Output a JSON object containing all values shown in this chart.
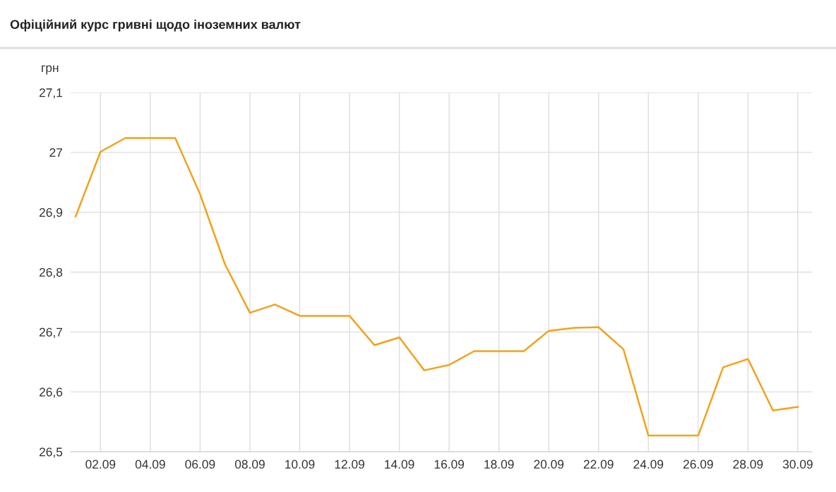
{
  "chart_data": {
    "type": "line",
    "title": "Офіційний курс гривні щодо іноземних валют",
    "ylabel": "грн",
    "categories": [
      null,
      "02.09",
      null,
      "04.09",
      null,
      "06.09",
      null,
      "08.09",
      null,
      "10.09",
      null,
      "12.09",
      null,
      "14.09",
      null,
      "16.09",
      null,
      "18.09",
      null,
      "20.09",
      null,
      "22.09",
      null,
      "24.09",
      null,
      "26.09",
      null,
      "28.09",
      null,
      "30.09"
    ],
    "series": [
      {
        "color": "#f0a31a",
        "values": [
          26.893,
          27.001,
          27.024,
          27.024,
          27.024,
          26.93,
          26.813,
          26.732,
          26.746,
          26.727,
          26.727,
          26.727,
          26.678,
          26.691,
          26.636,
          26.645,
          26.668,
          26.668,
          26.668,
          26.702,
          26.707,
          26.708,
          26.671,
          26.527,
          26.527,
          26.527,
          26.641,
          26.655,
          26.569,
          26.575
        ]
      }
    ],
    "ylim": [
      26.5,
      27.1
    ],
    "yticks": [
      {
        "value": 26.5,
        "label": "26,5"
      },
      {
        "value": 26.6,
        "label": "26,6"
      },
      {
        "value": 26.7,
        "label": "26,7"
      },
      {
        "value": 26.8,
        "label": "26,8"
      },
      {
        "value": 26.9,
        "label": "26,9"
      },
      {
        "value": 27,
        "label": "27"
      },
      {
        "value": 27.1,
        "label": "27,1"
      }
    ],
    "grid": true,
    "marker": "none",
    "line_style": "solid"
  }
}
